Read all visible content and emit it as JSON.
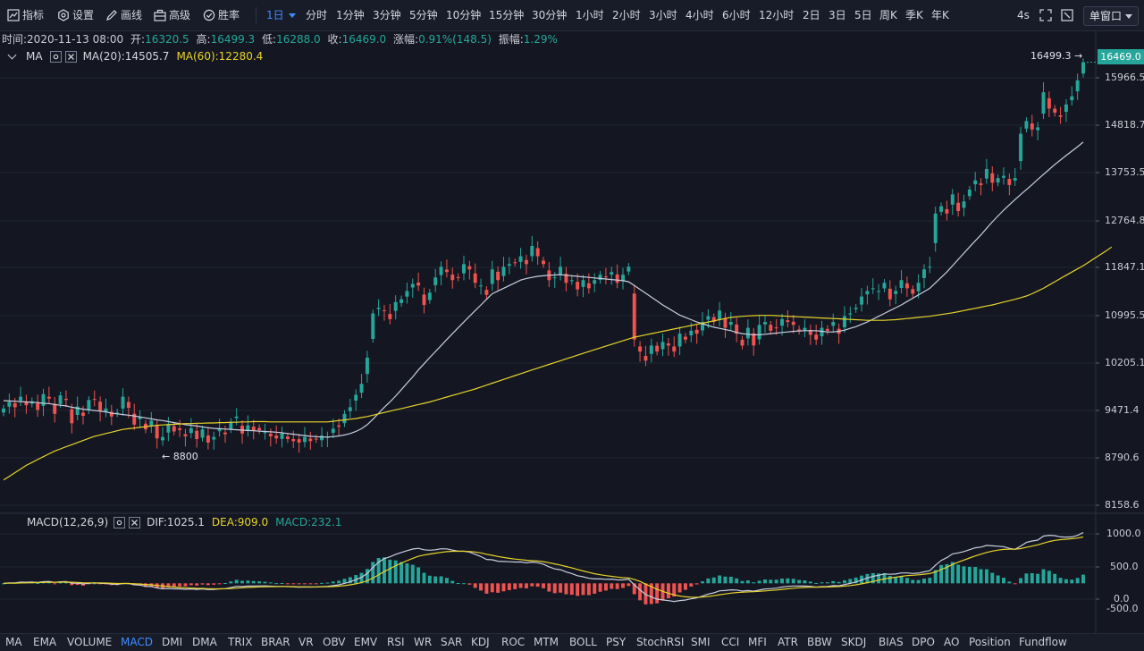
{
  "toolbar": {
    "indicator": "指标",
    "settings": "设置",
    "draw": "画线",
    "advanced": "高级",
    "winrate": "胜率",
    "timeframes": [
      "1日",
      "分时",
      "1分钟",
      "3分钟",
      "5分钟",
      "10分钟",
      "15分钟",
      "30分钟",
      "1小时",
      "2小时",
      "3小时",
      "4小时",
      "6小时",
      "12小时",
      "2日",
      "3日",
      "5日",
      "周K",
      "季K",
      "年K"
    ],
    "active_timeframe": "1日",
    "countdown": "4s",
    "window_mode": "单窗口"
  },
  "info_bar": {
    "time_label": "时间:",
    "time_value": "2020-11-13 08:00",
    "open_label": "开:",
    "open_value": "16320.5",
    "high_label": "高:",
    "high_value": "16499.3",
    "low_label": "低:",
    "low_value": "16288.0",
    "close_label": "收:",
    "close_value": "16469.0",
    "change_label": "涨幅:",
    "change_value": "0.91%(148.5)",
    "amplitude_label": "振幅:",
    "amplitude_value": "1.29%"
  },
  "main_legend": {
    "name": "MA",
    "ma20": "MA(20):14505.7",
    "ma60": "MA(60):12280.4"
  },
  "macd_legend": {
    "name": "MACD(12,26,9)",
    "dif": "DIF:1025.1",
    "dea": "DEA:909.0",
    "macd": "MACD:232.1"
  },
  "price_axis": [
    "15966.5",
    "14818.7",
    "13753.5",
    "12764.8",
    "11847.1",
    "10995.5",
    "10205.1",
    "9471.4",
    "8790.6",
    "8158.6"
  ],
  "macd_axis": [
    "1000.0",
    "500.0",
    "0.0",
    "-500.0"
  ],
  "last_price": "16469.0",
  "max_label": "16499.3",
  "min_label": "8800",
  "colors": {
    "up": "#26a69a",
    "down": "#ef5350",
    "ma20": "#c8cde0",
    "ma60": "#e8d32a",
    "accent": "#3f8cff",
    "bg": "#141722"
  },
  "chart_data": {
    "type": "candlestick",
    "closes": [
      9500,
      9600,
      9520,
      9680,
      9550,
      9610,
      9480,
      9720,
      9650,
      9420,
      9700,
      9630,
      9280,
      9530,
      9390,
      9630,
      9640,
      9460,
      9500,
      9380,
      9440,
      9680,
      9510,
      9260,
      9370,
      9190,
      9320,
      9060,
      9080,
      9270,
      9160,
      9180,
      9090,
      9210,
      9050,
      9190,
      9000,
      9080,
      9200,
      9120,
      9300,
      9380,
      9130,
      9250,
      9170,
      9180,
      9150,
      9090,
      9060,
      9130,
      9050,
      9020,
      9000,
      9080,
      9020,
      9050,
      9100,
      9080,
      9200,
      9230,
      9420,
      9520,
      9710,
      9880,
      10300,
      11050,
      11150,
      11100,
      10950,
      11250,
      11300,
      11450,
      11580,
      11550,
      11200,
      11420,
      11700,
      11900,
      11800,
      11650,
      11700,
      11950,
      11850,
      11600,
      11550,
      11380,
      11850,
      11650,
      11900,
      11950,
      11980,
      12100,
      11950,
      12300,
      12100,
      11950,
      11650,
      11700,
      11900,
      11600,
      11650,
      11480,
      11650,
      11500,
      11650,
      11750,
      11700,
      11800,
      11600,
      11750,
      11900,
      10600,
      10400,
      10250,
      10500,
      10400,
      10560,
      10500,
      10400,
      10700,
      10600,
      10750,
      10700,
      10900,
      11000,
      10900,
      11100,
      10800,
      10900,
      10700,
      10500,
      10800,
      10500,
      10850,
      10900,
      10750,
      10800,
      10950,
      10900,
      10850,
      10750,
      10800,
      10680,
      10600,
      10800,
      10750,
      10900,
      10700,
      11000,
      11050,
      11150,
      11350,
      11450,
      11500,
      11450,
      11600,
      11300,
      11450,
      11650,
      11500,
      11400,
      11600,
      11850,
      11900,
      12950,
      13100,
      12950,
      13350,
      13000,
      13200,
      13450,
      13650,
      13550,
      13900,
      13600,
      13700,
      13750,
      13550,
      13700,
      14700,
      15000,
      14800,
      14850,
      15700,
      15300,
      15200,
      15100,
      15400,
      15600,
      16000,
      16469
    ],
    "ma20": [
      9620,
      9615,
      9610,
      9605,
      9600,
      9595,
      9590,
      9580,
      9575,
      9560,
      9550,
      9540,
      9520,
      9505,
      9490,
      9480,
      9470,
      9460,
      9450,
      9430,
      9420,
      9410,
      9400,
      9390,
      9375,
      9360,
      9345,
      9330,
      9320,
      9305,
      9290,
      9275,
      9260,
      9250,
      9240,
      9225,
      9215,
      9205,
      9200,
      9195,
      9190,
      9185,
      9180,
      9175,
      9170,
      9165,
      9160,
      9155,
      9150,
      9140,
      9130,
      9120,
      9110,
      9100,
      9090,
      9085,
      9080,
      9080,
      9085,
      9095,
      9110,
      9130,
      9160,
      9200,
      9260,
      9340,
      9430,
      9520,
      9600,
      9690,
      9790,
      9890,
      9990,
      10100,
      10200,
      10300,
      10400,
      10500,
      10600,
      10700,
      10800,
      10900,
      11000,
      11100,
      11200,
      11300,
      11400,
      11450,
      11500,
      11550,
      11600,
      11650,
      11680,
      11700,
      11720,
      11730,
      11740,
      11745,
      11750,
      11740,
      11730,
      11720,
      11710,
      11700,
      11690,
      11680,
      11670,
      11660,
      11650,
      11640,
      11620,
      11550,
      11480,
      11410,
      11340,
      11270,
      11200,
      11140,
      11080,
      11020,
      10980,
      10940,
      10900,
      10870,
      10840,
      10810,
      10790,
      10770,
      10750,
      10720,
      10700,
      10690,
      10680,
      10680,
      10690,
      10700,
      10710,
      10720,
      10730,
      10740,
      10745,
      10750,
      10750,
      10750,
      10740,
      10730,
      10730,
      10740,
      10760,
      10790,
      10820,
      10860,
      10900,
      10950,
      11000,
      11050,
      11100,
      11150,
      11200,
      11260,
      11320,
      11380,
      11440,
      11500,
      11600,
      11700,
      11800,
      11920,
      12040,
      12160,
      12280,
      12400,
      12520,
      12650,
      12780,
      12900,
      13020,
      13130,
      13240,
      13350,
      13450,
      13560,
      13670,
      13780,
      13890,
      14000,
      14100,
      14200,
      14300,
      14400,
      14505.7
    ],
    "ma60": [
      8480,
      8530,
      8580,
      8630,
      8680,
      8720,
      8760,
      8800,
      8840,
      8880,
      8910,
      8940,
      8970,
      9000,
      9030,
      9060,
      9090,
      9110,
      9130,
      9150,
      9170,
      9190,
      9200,
      9210,
      9220,
      9230,
      9240,
      9250,
      9255,
      9260,
      9265,
      9270,
      9275,
      9275,
      9280,
      9280,
      9285,
      9285,
      9290,
      9290,
      9295,
      9295,
      9300,
      9300,
      9305,
      9305,
      9305,
      9300,
      9300,
      9300,
      9300,
      9300,
      9300,
      9300,
      9300,
      9300,
      9300,
      9300,
      9310,
      9320,
      9330,
      9340,
      9350,
      9365,
      9380,
      9400,
      9420,
      9440,
      9460,
      9480,
      9500,
      9520,
      9540,
      9560,
      9580,
      9600,
      9625,
      9650,
      9675,
      9700,
      9725,
      9750,
      9775,
      9800,
      9830,
      9860,
      9890,
      9920,
      9950,
      9980,
      10010,
      10040,
      10070,
      10100,
      10130,
      10160,
      10190,
      10220,
      10250,
      10280,
      10310,
      10340,
      10370,
      10400,
      10430,
      10460,
      10490,
      10520,
      10550,
      10580,
      10610,
      10640,
      10660,
      10680,
      10700,
      10720,
      10740,
      10760,
      10780,
      10800,
      10820,
      10840,
      10860,
      10880,
      10900,
      10920,
      10940,
      10960,
      10980,
      10990,
      11000,
      11005,
      11010,
      11015,
      11015,
      11015,
      11010,
      11005,
      11000,
      10995,
      10990,
      10985,
      10980,
      10975,
      10970,
      10965,
      10960,
      10955,
      10950,
      10945,
      10940,
      10935,
      10930,
      10930,
      10930,
      10930,
      10935,
      10940,
      10950,
      10960,
      10970,
      10980,
      10990,
      11000,
      11015,
      11030,
      11045,
      11060,
      11080,
      11100,
      11120,
      11140,
      11160,
      11180,
      11200,
      11225,
      11250,
      11275,
      11300,
      11330,
      11360,
      11400,
      11450,
      11500,
      11560,
      11620,
      11680,
      11740,
      11800,
      11860,
      11920,
      11990,
      12060,
      12130,
      12200,
      12280.4
    ],
    "price_range": [
      8158.6,
      16600
    ],
    "macd_range": [
      -500,
      1000
    ]
  }
}
